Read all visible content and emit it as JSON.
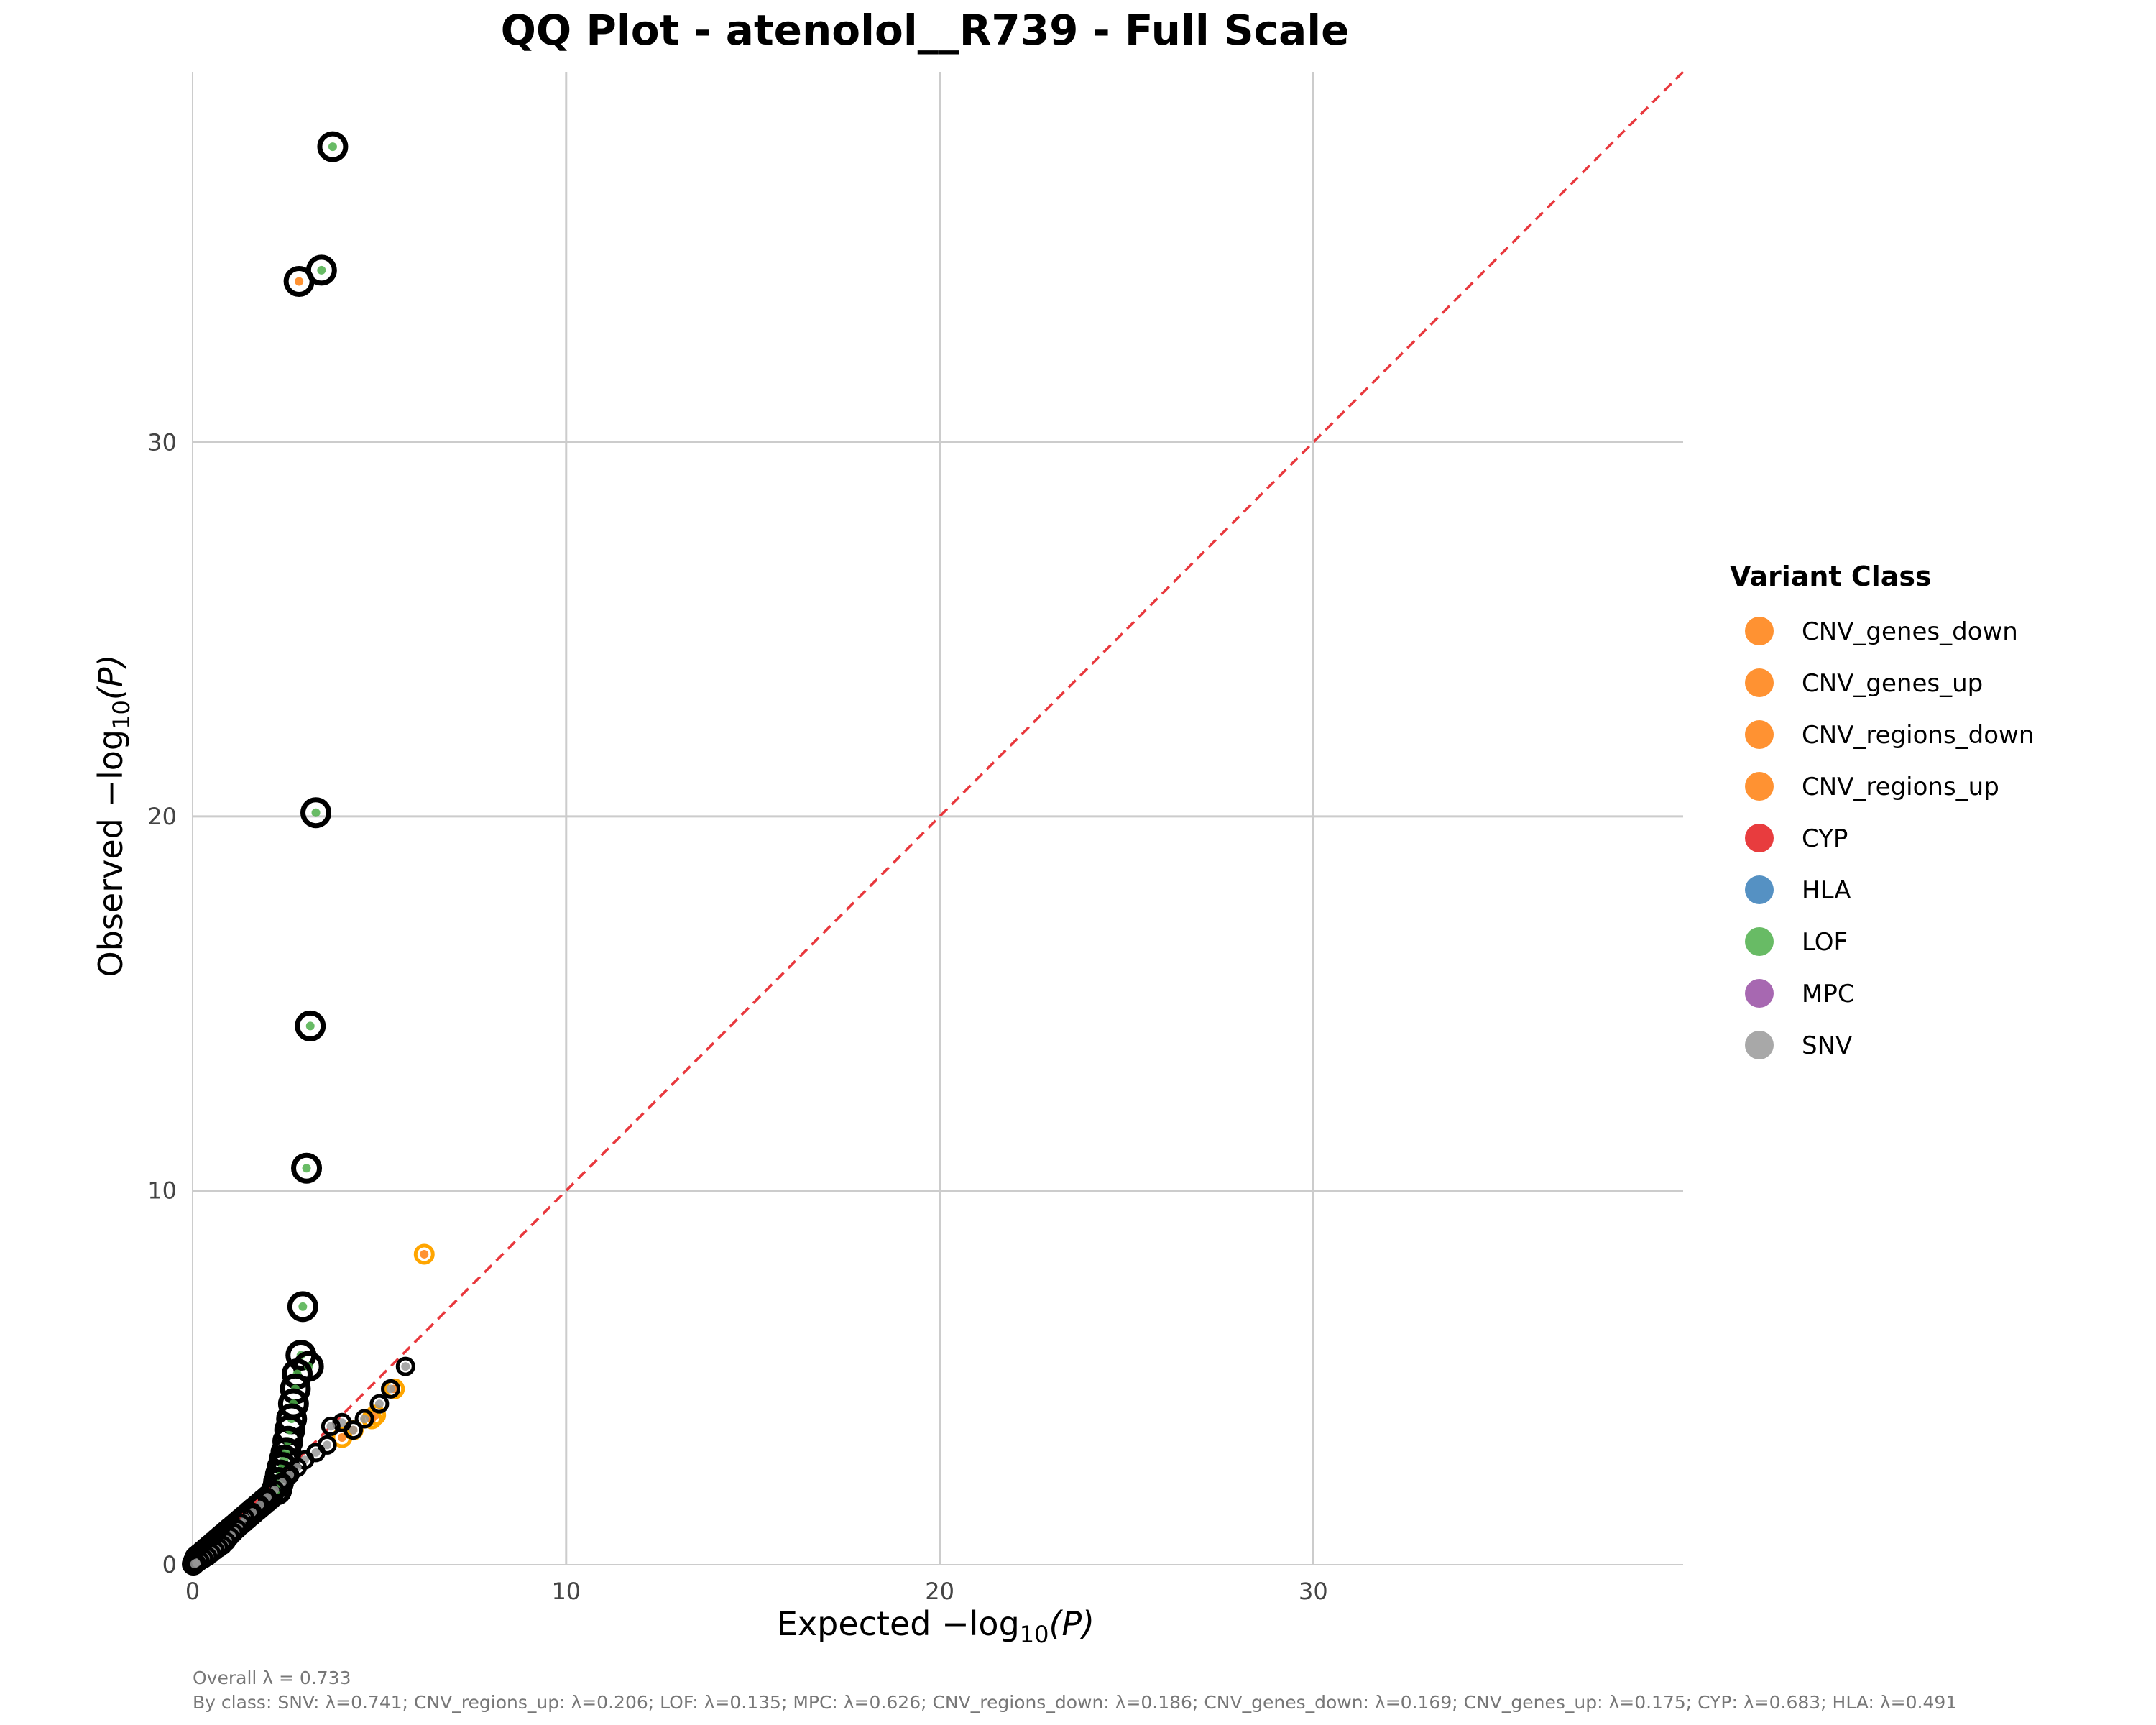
{
  "chart_data": {
    "type": "scatter",
    "title": "QQ Plot - atenolol__R739 - Full Scale",
    "xlabel": {
      "prefix": "Expected −log",
      "sub": "10",
      "var": "(P)"
    },
    "ylabel": {
      "prefix": "Observed −log",
      "sub": "10",
      "var": "(P)"
    },
    "xlim": [
      0,
      39.9
    ],
    "ylim": [
      0,
      39.9
    ],
    "xticks": [
      0,
      10,
      20,
      30
    ],
    "yticks": [
      0,
      10,
      20,
      30
    ],
    "grid": true,
    "legend_placement": "right",
    "reference_line": {
      "type": "y=x",
      "style": "dashed",
      "color": "#e8383d"
    },
    "legend": {
      "title": "Variant Class",
      "items": [
        {
          "label": "CNV_genes_down",
          "color": "#ff7f0e"
        },
        {
          "label": "CNV_genes_up",
          "color": "#ff7f0e"
        },
        {
          "label": "CNV_regions_down",
          "color": "#ff7f0e"
        },
        {
          "label": "CNV_regions_up",
          "color": "#ff7f0e"
        },
        {
          "label": "CYP",
          "color": "#e41a1c"
        },
        {
          "label": "HLA",
          "color": "#377eb8"
        },
        {
          "label": "LOF",
          "color": "#4daf4a"
        },
        {
          "label": "MPC",
          "color": "#984ea3"
        },
        {
          "label": "SNV",
          "color": "#999999"
        }
      ]
    },
    "series": [
      {
        "name": "LOF",
        "color": "#4daf4a",
        "ring": "#000000",
        "points": [
          [
            3.75,
            37.9
          ],
          [
            3.45,
            34.6
          ],
          [
            3.3,
            20.1
          ],
          [
            3.15,
            14.4
          ],
          [
            3.05,
            10.6
          ],
          [
            2.95,
            6.9
          ],
          [
            2.9,
            5.6
          ],
          [
            3.1,
            5.3
          ],
          [
            2.8,
            5.1
          ],
          [
            2.75,
            4.7
          ],
          [
            2.7,
            4.3
          ],
          [
            2.65,
            3.9
          ],
          [
            2.6,
            3.6
          ],
          [
            2.55,
            3.3
          ],
          [
            2.5,
            3.0
          ],
          [
            2.45,
            2.8
          ],
          [
            2.4,
            2.6
          ],
          [
            2.35,
            2.4
          ],
          [
            2.3,
            2.2
          ],
          [
            2.25,
            2.0
          ]
        ]
      },
      {
        "name": "CNV_regions_up",
        "color": "#ff7f0e",
        "ring": "#000000",
        "points": [
          [
            2.85,
            34.3
          ]
        ]
      },
      {
        "name": "CNV_genes_down",
        "color": "#ff7f0e",
        "ring": "#ffa500",
        "points": [
          [
            6.2,
            8.3
          ],
          [
            5.4,
            4.7
          ],
          [
            4.9,
            4.0
          ],
          [
            4.8,
            3.9
          ],
          [
            4.3,
            3.6
          ],
          [
            4.0,
            3.4
          ]
        ]
      },
      {
        "name": "SNV",
        "color": "#999999",
        "ring": "#000000",
        "points": [
          [
            5.7,
            5.3
          ],
          [
            5.3,
            4.7
          ],
          [
            5.0,
            4.3
          ],
          [
            4.6,
            3.9
          ],
          [
            4.3,
            3.6
          ],
          [
            4.0,
            3.8
          ],
          [
            3.7,
            3.7
          ],
          [
            3.6,
            3.2
          ],
          [
            3.3,
            3.0
          ],
          [
            3.0,
            2.8
          ],
          [
            2.8,
            2.6
          ],
          [
            2.6,
            2.4
          ],
          [
            2.4,
            2.2
          ],
          [
            2.2,
            2.0
          ],
          [
            2.0,
            1.8
          ],
          [
            1.8,
            1.6
          ],
          [
            1.6,
            1.4
          ],
          [
            1.4,
            1.25
          ],
          [
            1.3,
            1.1
          ],
          [
            1.2,
            0.95
          ],
          [
            1.1,
            0.85
          ],
          [
            1.0,
            0.75
          ],
          [
            0.9,
            0.62
          ],
          [
            0.8,
            0.52
          ],
          [
            0.7,
            0.45
          ],
          [
            0.6,
            0.38
          ],
          [
            0.5,
            0.3
          ],
          [
            0.4,
            0.22
          ],
          [
            0.3,
            0.16
          ],
          [
            0.2,
            0.1
          ],
          [
            0.1,
            0.05
          ],
          [
            0.05,
            0.02
          ]
        ]
      }
    ],
    "annotations": [
      "Overall λ = 0.733",
      "By class: SNV: λ=0.741; CNV_regions_up: λ=0.206; LOF: λ=0.135; MPC: λ=0.626; CNV_regions_down: λ=0.186; CNV_genes_down: λ=0.169; CNV_genes_up: λ=0.175; CYP: λ=0.683; HLA: λ=0.491"
    ]
  }
}
